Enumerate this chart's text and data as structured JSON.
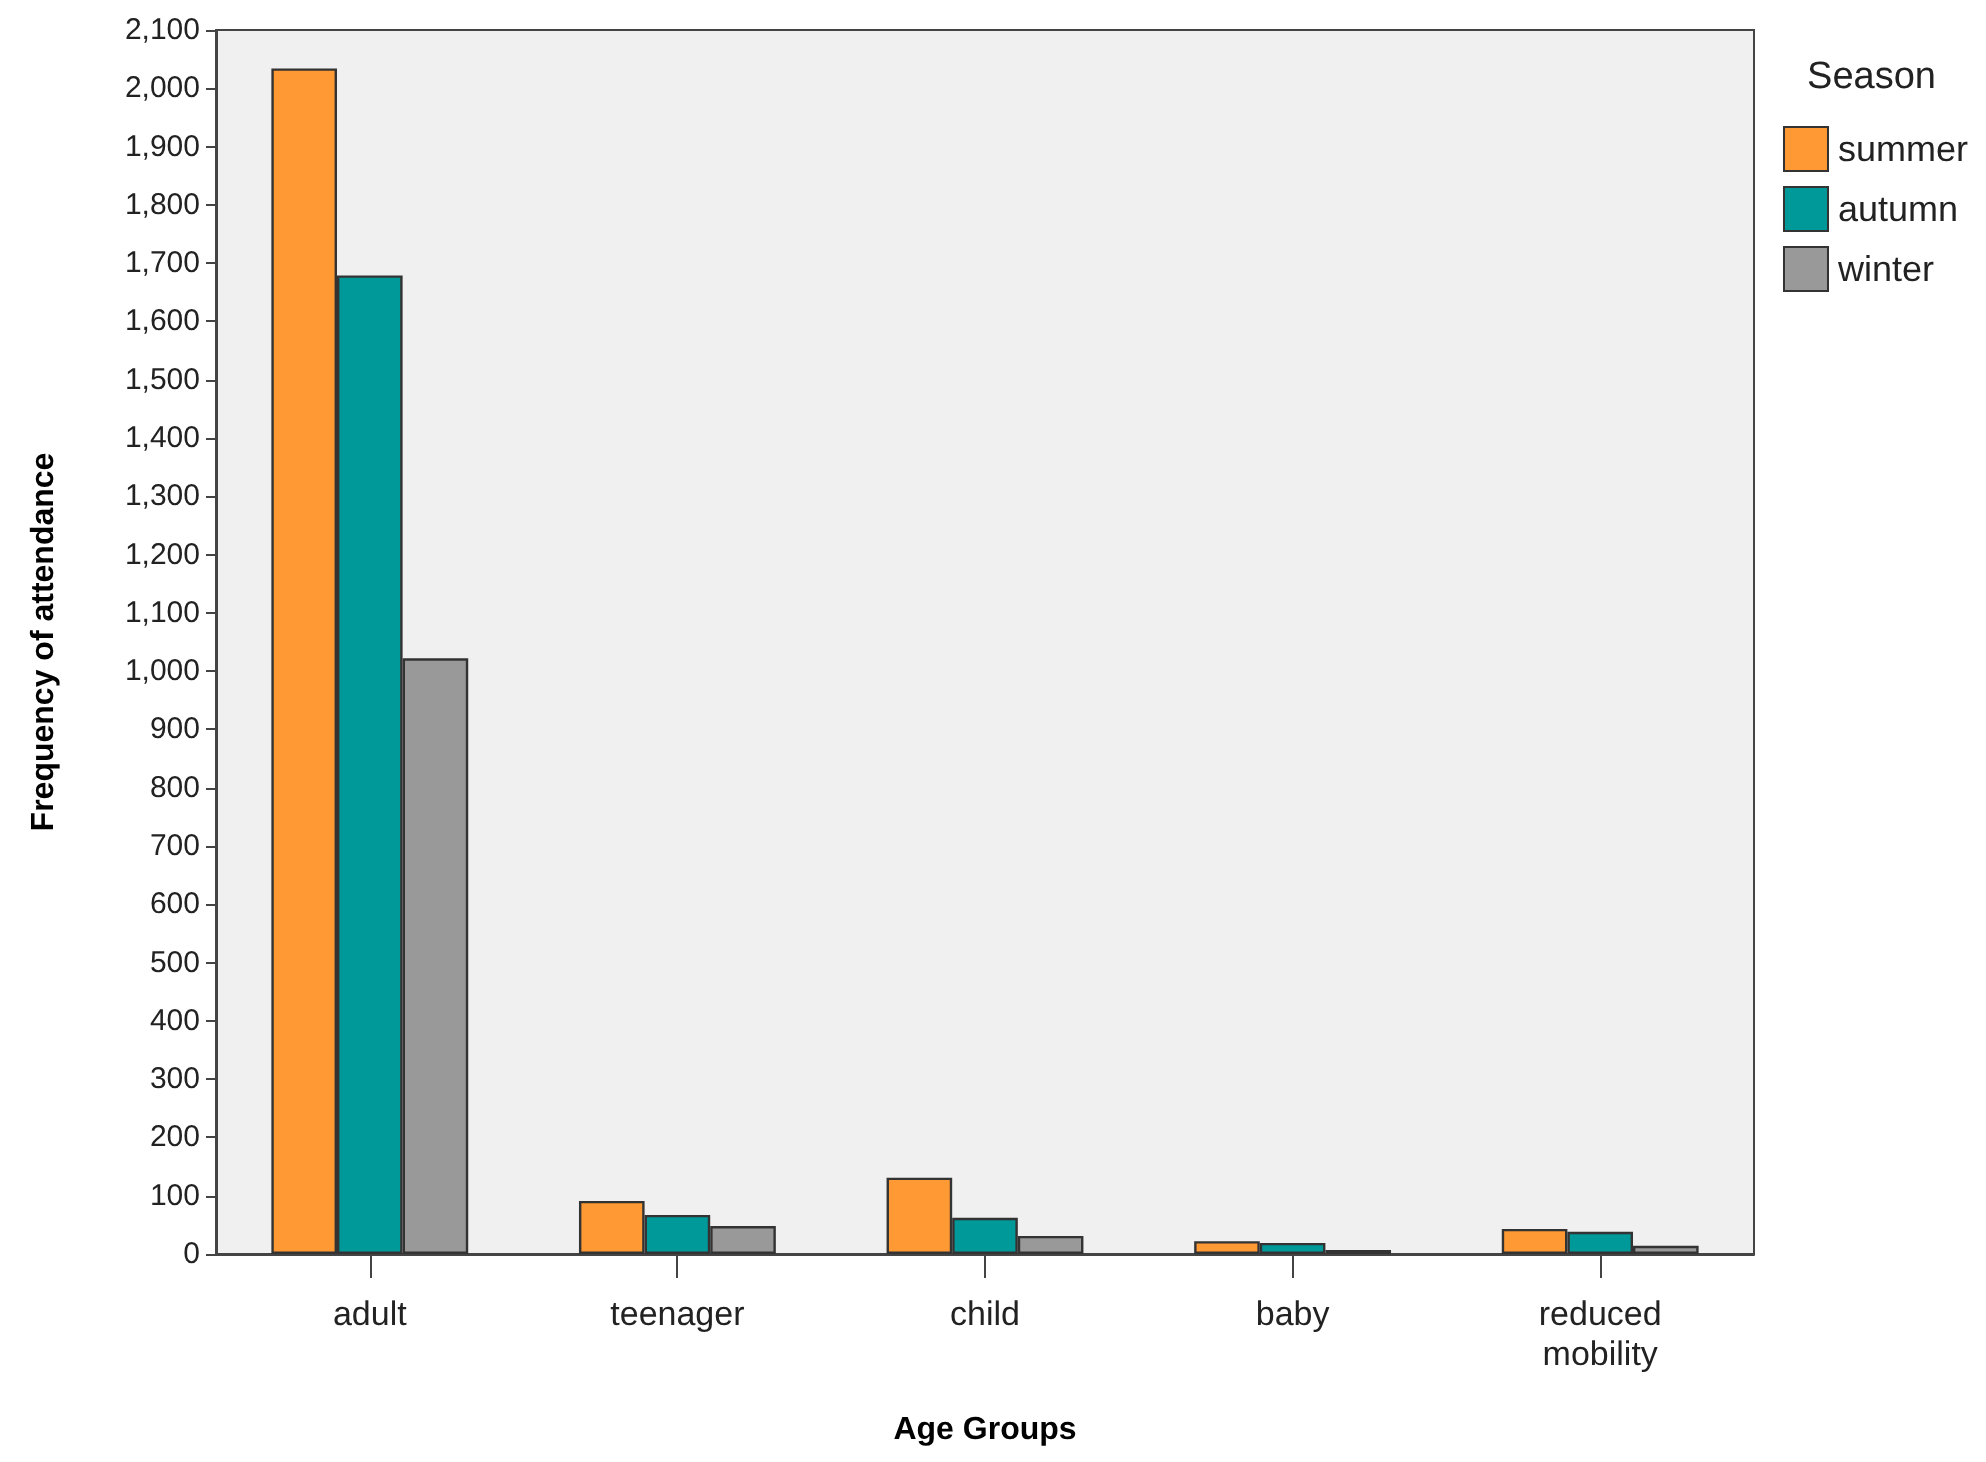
{
  "chart_data": {
    "type": "bar",
    "xlabel": "Age Groups",
    "ylabel": "Frequency of attendance",
    "legend_title": "Season",
    "legend": "top right",
    "grid": false,
    "categories": [
      "adult",
      "teenager",
      "child",
      "baby",
      "reduced mobility"
    ],
    "series": [
      {
        "name": "summer",
        "color": "#ff9933",
        "values": [
          2034,
          91,
          131,
          22,
          43
        ]
      },
      {
        "name": "autumn",
        "color": "#009999",
        "values": [
          1679,
          67,
          62,
          19,
          38
        ]
      },
      {
        "name": "winter",
        "color": "#999999",
        "values": [
          1022,
          48,
          31,
          7,
          14
        ]
      }
    ],
    "ylim": [
      0,
      2100
    ],
    "yticks": [
      0,
      100,
      200,
      300,
      400,
      500,
      600,
      700,
      800,
      900,
      {
        "value": 1000,
        "label": "1,000"
      },
      {
        "value": 1100,
        "label": "1,100"
      },
      {
        "value": 1200,
        "label": "1,200"
      },
      {
        "value": 1300,
        "label": "1,300"
      },
      {
        "value": 1400,
        "label": "1,400"
      },
      {
        "value": 1500,
        "label": "1,500"
      },
      {
        "value": 1600,
        "label": "1,600"
      },
      {
        "value": 1700,
        "label": "1,700"
      },
      {
        "value": 1800,
        "label": "1,800"
      },
      {
        "value": 1900,
        "label": "1,900"
      },
      {
        "value": 2000,
        "label": "2,000"
      },
      {
        "value": 2100,
        "label": "2,100"
      }
    ]
  }
}
